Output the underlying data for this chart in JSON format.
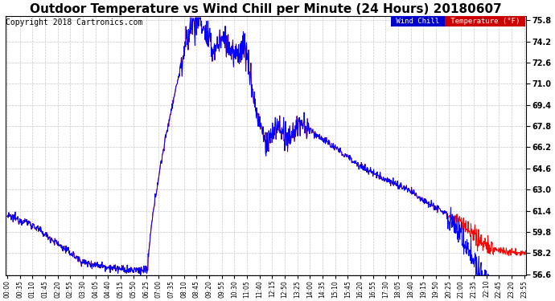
{
  "title": "Outdoor Temperature vs Wind Chill per Minute (24 Hours) 20180607",
  "copyright": "Copyright 2018 Cartronics.com",
  "legend_wind_chill": "Wind Chill (°F)",
  "legend_temperature": "Temperature (°F)",
  "wind_chill_color": "#0000ff",
  "temperature_color": "#ff0000",
  "background_color": "#ffffff",
  "plot_bg_color": "#ffffff",
  "grid_color": "#c8c8c8",
  "ylim_min": 56.6,
  "ylim_max": 75.8,
  "ytick_step": 1.6,
  "title_fontsize": 11,
  "copyright_fontsize": 7.5,
  "legend_wind_chill_bg": "#0000cc",
  "legend_temperature_bg": "#cc0000",
  "ytick_labels": [
    "56.6",
    "58.2",
    "59.8",
    "61.4",
    "63.0",
    "64.6",
    "66.2",
    "67.8",
    "69.4",
    "71.0",
    "72.6",
    "74.2",
    "75.8"
  ]
}
